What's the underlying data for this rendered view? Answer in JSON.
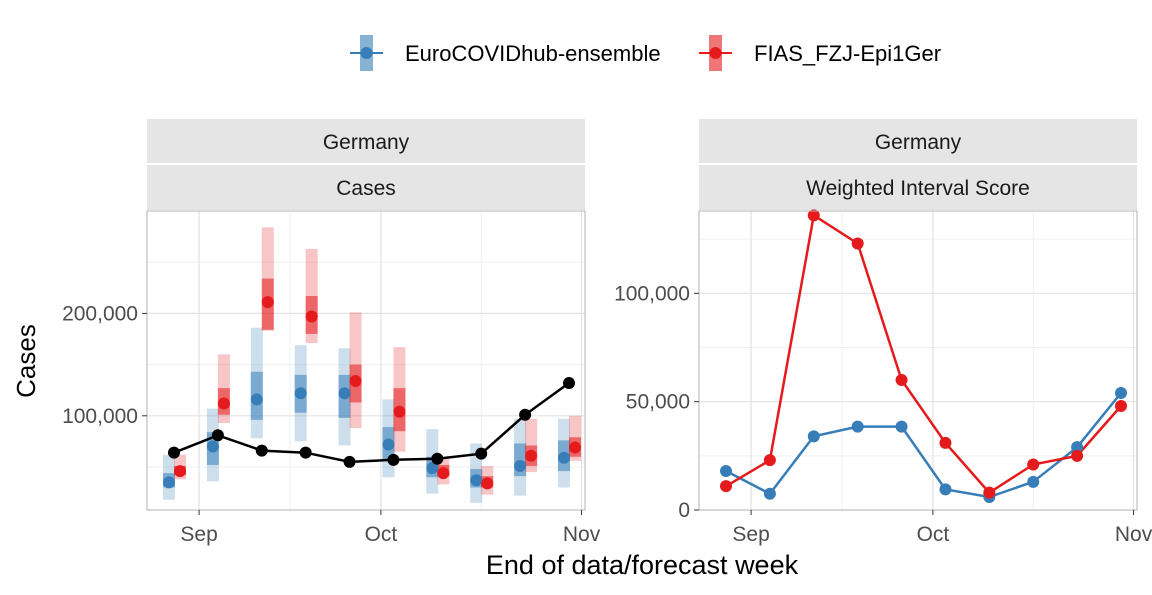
{
  "chart_data": {
    "type": "line",
    "xlabel": "End of data/forecast week",
    "legend": {
      "position": "top",
      "entries": [
        {
          "name": "EuroCOVIDhub-ensemble",
          "color": "#377eb8"
        },
        {
          "name": "FIAS_FZJ-Epi1Ger",
          "color": "#e41a1c"
        }
      ]
    },
    "x_tick_labels": [
      "Sep",
      "Oct",
      "Nov"
    ],
    "panels": [
      {
        "strip_top": "Germany",
        "strip_bottom": "Cases",
        "ylabel": "Cases",
        "ylim": [
          8000,
          300000
        ],
        "yticks": [
          100000,
          200000
        ],
        "ytick_labels": [
          "100,000",
          "200,000"
        ],
        "dates": [
          "Aug 28",
          "Sep 4",
          "Sep 11",
          "Sep 18",
          "Sep 25",
          "Oct 2",
          "Oct 9",
          "Oct 16",
          "Oct 23",
          "Oct 30"
        ],
        "observed": {
          "name": "observed",
          "color": "#000000",
          "values": [
            64000,
            81000,
            66000,
            64000,
            55000,
            57000,
            58000,
            63000,
            101000,
            132000
          ]
        },
        "forecasts": [
          {
            "name": "EuroCOVIDhub-ensemble",
            "color": "#377eb8",
            "median": [
              35000,
              70000,
              116000,
              122000,
              122000,
              72000,
              49000,
              37000,
              51000,
              59000
            ],
            "inner_lower": [
              30000,
              52000,
              96000,
              103000,
              98000,
              56000,
              40000,
              30000,
              41000,
              46000
            ],
            "inner_upper": [
              44000,
              84000,
              143000,
              140000,
              140000,
              89000,
              60000,
              48000,
              73000,
              76000
            ],
            "outer_lower": [
              18000,
              36000,
              78000,
              75000,
              71000,
              40000,
              24000,
              15000,
              22000,
              30000
            ],
            "outer_upper": [
              62000,
              107000,
              186000,
              169000,
              166000,
              116000,
              87000,
              73000,
              97000,
              97000
            ]
          },
          {
            "name": "FIAS_FZJ-Epi1Ger",
            "color": "#e41a1c",
            "median": [
              46000,
              112000,
              211000,
              197000,
              134000,
              104000,
              44000,
              34000,
              61000,
              69000
            ],
            "inner_lower": [
              42000,
              101000,
              184000,
              180000,
              113000,
              85000,
              41000,
              30000,
              51000,
              60000
            ],
            "inner_upper": [
              51000,
              127000,
              234000,
              217000,
              150000,
              127000,
              52000,
              41000,
              71000,
              79000
            ],
            "outer_lower": [
              38000,
              93000,
              183000,
              171000,
              88000,
              65000,
              33000,
              23000,
              45000,
              56000
            ],
            "outer_upper": [
              62000,
              160000,
              284000,
              263000,
              201000,
              167000,
              58000,
              51000,
              97000,
              100000
            ]
          }
        ]
      },
      {
        "strip_top": "Germany",
        "strip_bottom": "Weighted Interval Score",
        "ylabel": "",
        "ylim": [
          0,
          138000
        ],
        "yticks": [
          0,
          50000,
          100000
        ],
        "ytick_labels": [
          "0",
          "50,000",
          "100,000"
        ],
        "dates": [
          "Aug 28",
          "Sep 4",
          "Sep 11",
          "Sep 18",
          "Sep 25",
          "Oct 2",
          "Oct 9",
          "Oct 16",
          "Oct 23",
          "Oct 30"
        ],
        "series": [
          {
            "name": "EuroCOVIDhub-ensemble",
            "color": "#377eb8",
            "values": [
              18000,
              7500,
              34000,
              38500,
              38500,
              9500,
              6000,
              13000,
              29000,
              54000
            ]
          },
          {
            "name": "FIAS_FZJ-Epi1Ger",
            "color": "#e41a1c",
            "values": [
              11000,
              23000,
              136000,
              123000,
              60000,
              31000,
              8000,
              21000,
              25000,
              48000
            ]
          }
        ]
      }
    ]
  }
}
